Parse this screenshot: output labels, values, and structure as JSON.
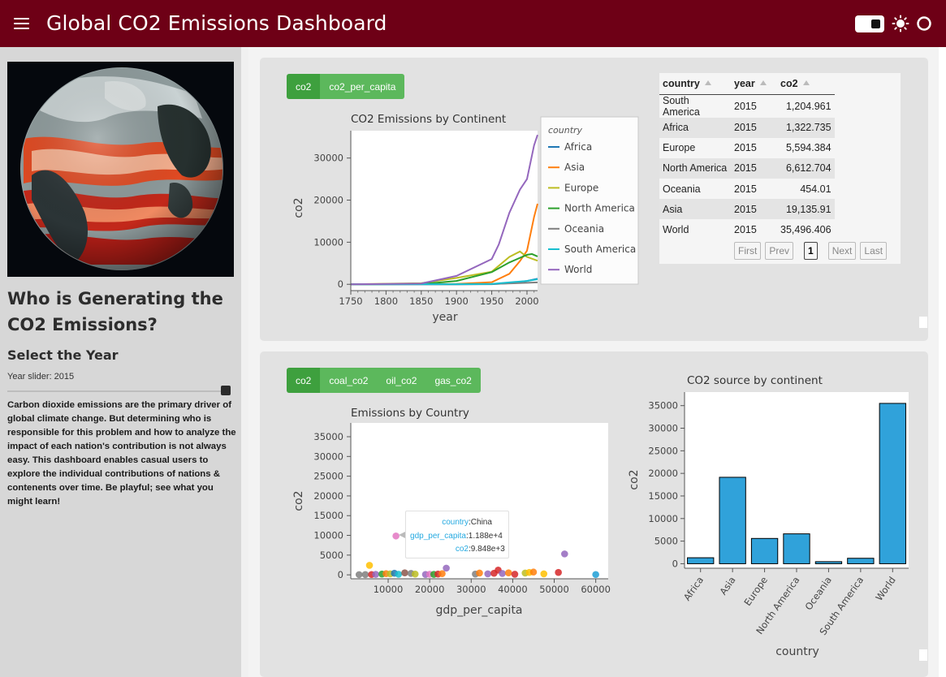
{
  "header": {
    "title": "Global CO2 Emissions Dashboard",
    "colors": {
      "bar": "#6e0016",
      "text": "#ffffff"
    }
  },
  "sidebar": {
    "heading": "Who is Generating the CO2 Emissions?",
    "subheading": "Select the Year",
    "slider": {
      "label": "Year slider: 2015",
      "value": 2015
    },
    "description": "Carbon dioxide emissions are the primary driver of global climate change. But determining who is responsible for this problem and how to analyze the impact of each nation's contribution is not always easy. This dashboard enables casual users to explore the individual contributions of nations & contenents over time. Be playful; see what you might learn!"
  },
  "top_buttons": [
    {
      "label": "co2",
      "active": true
    },
    {
      "label": "co2_per_capita",
      "active": false
    }
  ],
  "bottom_buttons": [
    {
      "label": "co2",
      "active": true
    },
    {
      "label": "coal_co2",
      "active": false
    },
    {
      "label": "oil_co2",
      "active": false
    },
    {
      "label": "gas_co2",
      "active": false
    }
  ],
  "line_chart": {
    "title": "CO2 Emissions by Continent",
    "legend_title": "country",
    "xlabel": "year",
    "ylabel": "co2",
    "x_ticks": [
      "1750",
      "1800",
      "1850",
      "1900",
      "1950",
      "2000"
    ],
    "y_ticks": [
      "0",
      "10000",
      "20000",
      "30000"
    ]
  },
  "table": {
    "columns": [
      "country",
      "year",
      "co2"
    ],
    "rows": [
      [
        "South America",
        "2015",
        "1,204.961"
      ],
      [
        "Africa",
        "2015",
        "1,322.735"
      ],
      [
        "Europe",
        "2015",
        "5,594.384"
      ],
      [
        "North America",
        "2015",
        "6,612.704"
      ],
      [
        "Oceania",
        "2015",
        "454.01"
      ],
      [
        "Asia",
        "2015",
        "19,135.91"
      ],
      [
        "World",
        "2015",
        "35,496.406"
      ]
    ],
    "pager": {
      "first": "First",
      "prev": "Prev",
      "page": "1",
      "next": "Next",
      "last": "Last"
    }
  },
  "scatter_chart": {
    "title": "Emissions by Country",
    "xlabel": "gdp_per_capita",
    "ylabel": "co2",
    "x_ticks": [
      "10000",
      "20000",
      "30000",
      "40000",
      "50000",
      "60000"
    ],
    "y_ticks": [
      "0",
      "5000",
      "10000",
      "15000",
      "20000",
      "25000",
      "30000",
      "35000"
    ],
    "tooltip": [
      {
        "key": "country",
        "value": "China"
      },
      {
        "key": "gdp_per_capita",
        "value": "1.188e+4"
      },
      {
        "key": "co2",
        "value": "9.848e+3"
      }
    ]
  },
  "bar_chart": {
    "title": "CO2 source by continent",
    "xlabel": "country",
    "ylabel": "co2",
    "y_ticks": [
      "0",
      "5000",
      "10000",
      "15000",
      "20000",
      "25000",
      "30000",
      "35000"
    ]
  },
  "chart_data": [
    {
      "type": "line",
      "title": "CO2 Emissions by Continent",
      "xlabel": "year",
      "ylabel": "co2",
      "xlim": [
        1750,
        2015
      ],
      "ylim": [
        -1500,
        36500
      ],
      "legend_position": "top-right",
      "series": [
        {
          "name": "Africa",
          "color": "#1f77b4",
          "x": [
            1750,
            1900,
            1950,
            1975,
            2000,
            2015
          ],
          "y": [
            0,
            5,
            30,
            250,
            800,
            1320
          ]
        },
        {
          "name": "Asia",
          "color": "#ff7f0e",
          "x": [
            1750,
            1900,
            1950,
            1975,
            1990,
            2000,
            2010,
            2015
          ],
          "y": [
            0,
            100,
            500,
            2500,
            5500,
            8000,
            16000,
            19135
          ]
        },
        {
          "name": "Europe",
          "color": "#bcbd22",
          "x": [
            1750,
            1850,
            1900,
            1950,
            1975,
            1990,
            2000,
            2015
          ],
          "y": [
            10,
            250,
            1500,
            3000,
            6500,
            7800,
            6500,
            5594
          ]
        },
        {
          "name": "North America",
          "color": "#2ca02c",
          "x": [
            1750,
            1850,
            1900,
            1950,
            1975,
            2000,
            2007,
            2015
          ],
          "y": [
            0,
            50,
            800,
            2900,
            5200,
            7000,
            7200,
            6612
          ]
        },
        {
          "name": "Oceania",
          "color": "#7f7f7f",
          "x": [
            1750,
            1900,
            1950,
            2000,
            2015
          ],
          "y": [
            0,
            10,
            60,
            350,
            454
          ]
        },
        {
          "name": "South America",
          "color": "#17becf",
          "x": [
            1750,
            1900,
            1950,
            2000,
            2015
          ],
          "y": [
            0,
            20,
            100,
            800,
            1205
          ]
        },
        {
          "name": "World",
          "color": "#9467bd",
          "x": [
            1750,
            1850,
            1900,
            1950,
            1960,
            1975,
            1990,
            2000,
            2010,
            2015
          ],
          "y": [
            10,
            200,
            2000,
            6000,
            9500,
            17000,
            22500,
            25000,
            33000,
            35496
          ]
        }
      ]
    },
    {
      "type": "scatter",
      "title": "Emissions by Country",
      "xlabel": "gdp_per_capita",
      "ylabel": "co2",
      "xlim": [
        1000,
        63000
      ],
      "ylim": [
        -1000,
        38500
      ],
      "points": [
        {
          "x": 3000,
          "y": 50,
          "color": "#7f7f7f"
        },
        {
          "x": 4500,
          "y": 60,
          "color": "#7f7f7f"
        },
        {
          "x": 5500,
          "y": 2400,
          "color": "#ffbf00"
        },
        {
          "x": 6000,
          "y": 80,
          "color": "#d62728"
        },
        {
          "x": 7000,
          "y": 120,
          "color": "#9467bd"
        },
        {
          "x": 8500,
          "y": 200,
          "color": "#2ca02c"
        },
        {
          "x": 9500,
          "y": 300,
          "color": "#ff7f0e"
        },
        {
          "x": 10500,
          "y": 250,
          "color": "#bcbd22"
        },
        {
          "x": 11500,
          "y": 400,
          "color": "#1f77b4"
        },
        {
          "x": 11880,
          "y": 9848,
          "color": "#e377c2"
        },
        {
          "x": 12500,
          "y": 150,
          "color": "#17becf"
        },
        {
          "x": 14000,
          "y": 500,
          "color": "#8c564b"
        },
        {
          "x": 15500,
          "y": 350,
          "color": "#7f7f7f"
        },
        {
          "x": 16500,
          "y": 200,
          "color": "#bcbd22"
        },
        {
          "x": 19000,
          "y": 100,
          "color": "#9467bd"
        },
        {
          "x": 20000,
          "y": 150,
          "color": "#e377c2"
        },
        {
          "x": 21000,
          "y": 120,
          "color": "#2ca02c"
        },
        {
          "x": 22000,
          "y": 200,
          "color": "#d62728"
        },
        {
          "x": 23000,
          "y": 300,
          "color": "#ff7f0e"
        },
        {
          "x": 24000,
          "y": 1700,
          "color": "#9467bd"
        },
        {
          "x": 31000,
          "y": 200,
          "color": "#7f7f7f"
        },
        {
          "x": 32000,
          "y": 450,
          "color": "#ff7f0e"
        },
        {
          "x": 34000,
          "y": 250,
          "color": "#9467bd"
        },
        {
          "x": 35500,
          "y": 400,
          "color": "#d62728"
        },
        {
          "x": 36500,
          "y": 1200,
          "color": "#d62728"
        },
        {
          "x": 37500,
          "y": 350,
          "color": "#9467bd"
        },
        {
          "x": 39000,
          "y": 500,
          "color": "#ff7f0e"
        },
        {
          "x": 40500,
          "y": 150,
          "color": "#d62728"
        },
        {
          "x": 43000,
          "y": 450,
          "color": "#bcbd22"
        },
        {
          "x": 44000,
          "y": 600,
          "color": "#ffbf00"
        },
        {
          "x": 45000,
          "y": 700,
          "color": "#ff7f0e"
        },
        {
          "x": 47500,
          "y": 250,
          "color": "#ffbf00"
        },
        {
          "x": 51000,
          "y": 600,
          "color": "#d62728"
        },
        {
          "x": 52500,
          "y": 5300,
          "color": "#9467bd"
        },
        {
          "x": 60000,
          "y": 80,
          "color": "#1f9fd5"
        }
      ]
    },
    {
      "type": "bar",
      "title": "CO2 source by continent",
      "xlabel": "country",
      "ylabel": "co2",
      "categories": [
        "Africa",
        "Asia",
        "Europe",
        "North America",
        "Oceania",
        "South America",
        "World"
      ],
      "values": [
        1322.735,
        19135.91,
        5594.384,
        6612.704,
        454.01,
        1204.961,
        35496.406
      ],
      "ylim": [
        -1000,
        38000
      ],
      "color": "#30a2da"
    }
  ]
}
